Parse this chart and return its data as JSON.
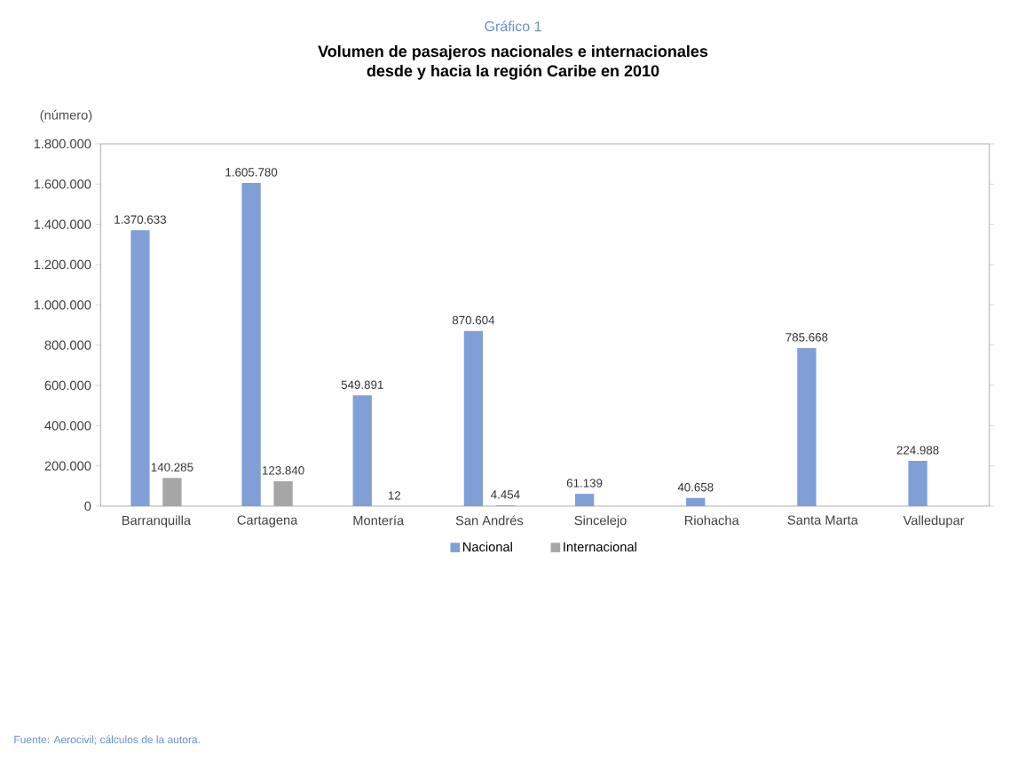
{
  "chart_data": {
    "type": "bar",
    "subtitle": "Gráfico 1",
    "title": "Volumen de pasajeros nacionales e internacionales\ndesde y hacia la región Caribe en 2010",
    "ylabel": "(número)",
    "categories": [
      "Barranquilla",
      "Cartagena",
      "Montería",
      "San Andrés",
      "Sincelejo",
      "Riohacha",
      "Santa Marta",
      "Valledupar"
    ],
    "series": [
      {
        "name": "Nacional",
        "color": "#7f9fd6",
        "values": [
          1370633,
          1605780,
          549891,
          870604,
          61139,
          40658,
          785668,
          224988
        ],
        "value_labels": [
          "1.370.633",
          "1.605.780",
          "549.891",
          "870.604",
          "61.139",
          "40.658",
          "785.668",
          "224.988"
        ]
      },
      {
        "name": "Internacional",
        "color": "#a6a6a6",
        "values": [
          140285,
          123840,
          12,
          4454,
          null,
          null,
          null,
          null
        ],
        "value_labels": [
          "140.285",
          "123.840",
          "12",
          "4.454",
          null,
          null,
          null,
          null
        ]
      }
    ],
    "ylim": [
      0,
      1800000
    ],
    "yticks": [
      {
        "value": 0,
        "label": "0"
      },
      {
        "value": 200000,
        "label": "200.000"
      },
      {
        "value": 400000,
        "label": "400.000"
      },
      {
        "value": 600000,
        "label": "600.000"
      },
      {
        "value": 800000,
        "label": "800.000"
      },
      {
        "value": 1000000,
        "label": "1.000.000"
      },
      {
        "value": 1200000,
        "label": "1.200.000"
      },
      {
        "value": 1400000,
        "label": "1.400.000"
      },
      {
        "value": 1600000,
        "label": "1.600.000"
      },
      {
        "value": 1800000,
        "label": "1.800.000"
      }
    ],
    "legend": "bottom",
    "annotations": [
      "Fuente: Aerocivil; cálculos de la autora."
    ]
  }
}
